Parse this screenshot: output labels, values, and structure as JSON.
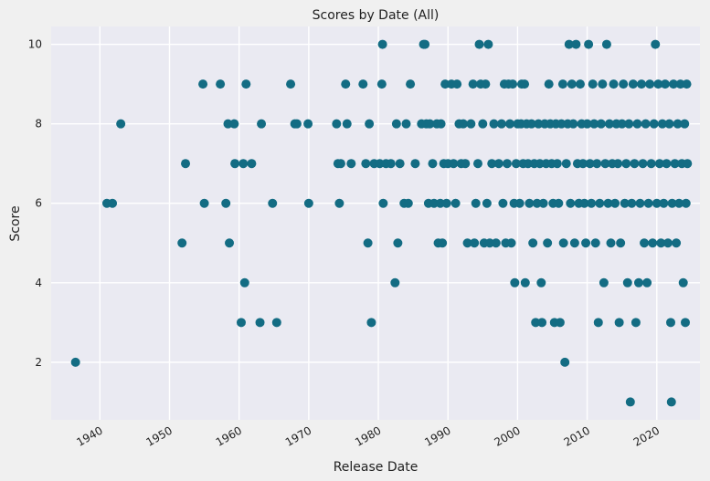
{
  "chart_data": {
    "type": "scatter",
    "title": "Scores by Date (All)",
    "xlabel": "Release Date",
    "ylabel": "Score",
    "xlim": [
      1933.0,
      2026.2
    ],
    "ylim": [
      0.55,
      10.45
    ],
    "xticks": [
      1940,
      1950,
      1960,
      1970,
      1980,
      1990,
      2000,
      2010,
      2020
    ],
    "xtick_labels": [
      "1940",
      "1950",
      "1960",
      "1970",
      "1980",
      "1990",
      "2000",
      "2010",
      "2020"
    ],
    "yticks": [
      2,
      4,
      6,
      8,
      10
    ],
    "ytick_labels": [
      "2",
      "4",
      "6",
      "8",
      "10"
    ],
    "grid": true,
    "colors": {
      "point": "#136c83",
      "plot_bg": "#eaeaf2",
      "fig_bg": "#f0f0f0",
      "grid": "#ffffff"
    },
    "series": [
      {
        "points": [
          [
            1936.5,
            2
          ],
          [
            1941.0,
            6
          ],
          [
            1941.8,
            6
          ],
          [
            1943.0,
            8
          ],
          [
            1951.8,
            5
          ],
          [
            1952.3,
            7
          ],
          [
            1954.8,
            9
          ],
          [
            1955.0,
            6
          ],
          [
            1957.3,
            9
          ],
          [
            1958.1,
            6
          ],
          [
            1958.4,
            8
          ],
          [
            1958.6,
            5
          ],
          [
            1959.3,
            8
          ],
          [
            1959.4,
            7
          ],
          [
            1960.3,
            3
          ],
          [
            1960.6,
            7
          ],
          [
            1960.8,
            4
          ],
          [
            1961.0,
            9
          ],
          [
            1961.8,
            7
          ],
          [
            1963.0,
            3
          ],
          [
            1963.2,
            8
          ],
          [
            1964.8,
            6
          ],
          [
            1965.4,
            3
          ],
          [
            1967.4,
            9
          ],
          [
            1968.0,
            8
          ],
          [
            1968.3,
            8
          ],
          [
            1969.9,
            8
          ],
          [
            1970.0,
            6
          ],
          [
            1974.0,
            8
          ],
          [
            1974.2,
            7
          ],
          [
            1974.4,
            6
          ],
          [
            1974.6,
            7
          ],
          [
            1975.3,
            9
          ],
          [
            1975.5,
            8
          ],
          [
            1976.1,
            7
          ],
          [
            1977.8,
            9
          ],
          [
            1978.2,
            7
          ],
          [
            1978.5,
            5
          ],
          [
            1978.7,
            8
          ],
          [
            1979.0,
            3
          ],
          [
            1979.4,
            7
          ],
          [
            1980.2,
            7
          ],
          [
            1980.5,
            9
          ],
          [
            1980.6,
            10
          ],
          [
            1980.7,
            6
          ],
          [
            1981.1,
            7
          ],
          [
            1981.8,
            7
          ],
          [
            1982.4,
            4
          ],
          [
            1982.6,
            8
          ],
          [
            1982.8,
            5
          ],
          [
            1983.1,
            7
          ],
          [
            1983.7,
            6
          ],
          [
            1984.0,
            8
          ],
          [
            1984.3,
            6
          ],
          [
            1984.6,
            9
          ],
          [
            1985.3,
            7
          ],
          [
            1986.2,
            8
          ],
          [
            1986.5,
            10
          ],
          [
            1986.7,
            10
          ],
          [
            1986.9,
            8
          ],
          [
            1987.2,
            6
          ],
          [
            1987.4,
            8
          ],
          [
            1987.8,
            7
          ],
          [
            1988.0,
            6
          ],
          [
            1988.4,
            8
          ],
          [
            1988.6,
            5
          ],
          [
            1988.9,
            6
          ],
          [
            1989.0,
            8
          ],
          [
            1989.2,
            5
          ],
          [
            1989.4,
            7
          ],
          [
            1989.6,
            9
          ],
          [
            1989.8,
            6
          ],
          [
            1990.0,
            7
          ],
          [
            1990.5,
            9
          ],
          [
            1990.8,
            7
          ],
          [
            1991.1,
            6
          ],
          [
            1991.3,
            9
          ],
          [
            1991.6,
            8
          ],
          [
            1991.9,
            7
          ],
          [
            1992.2,
            8
          ],
          [
            1992.5,
            7
          ],
          [
            1992.8,
            5
          ],
          [
            1993.3,
            8
          ],
          [
            1993.6,
            9
          ],
          [
            1993.8,
            5
          ],
          [
            1994.0,
            6
          ],
          [
            1994.3,
            7
          ],
          [
            1994.5,
            10
          ],
          [
            1994.7,
            9
          ],
          [
            1995.0,
            8
          ],
          [
            1995.2,
            5
          ],
          [
            1995.4,
            9
          ],
          [
            1995.6,
            6
          ],
          [
            1995.8,
            10
          ],
          [
            1996.0,
            5
          ],
          [
            1996.3,
            7
          ],
          [
            1996.6,
            8
          ],
          [
            1996.9,
            5
          ],
          [
            1997.3,
            7
          ],
          [
            1997.7,
            8
          ],
          [
            1997.9,
            6
          ],
          [
            1998.1,
            9
          ],
          [
            1998.3,
            5
          ],
          [
            1998.5,
            7
          ],
          [
            1998.7,
            9
          ],
          [
            1998.9,
            8
          ],
          [
            1999.1,
            5
          ],
          [
            1999.3,
            9
          ],
          [
            1999.5,
            6
          ],
          [
            1999.6,
            4
          ],
          [
            1999.8,
            7
          ],
          [
            2000.0,
            8
          ],
          [
            2000.3,
            6
          ],
          [
            2000.5,
            8
          ],
          [
            2000.6,
            9
          ],
          [
            2000.8,
            7
          ],
          [
            2001.0,
            9
          ],
          [
            2001.1,
            4
          ],
          [
            2001.3,
            8
          ],
          [
            2001.5,
            7
          ],
          [
            2001.7,
            6
          ],
          [
            2002.0,
            8
          ],
          [
            2002.2,
            5
          ],
          [
            2002.4,
            7
          ],
          [
            2002.6,
            3
          ],
          [
            2002.8,
            6
          ],
          [
            2003.0,
            8
          ],
          [
            2003.2,
            7
          ],
          [
            2003.4,
            4
          ],
          [
            2003.5,
            3
          ],
          [
            2003.7,
            6
          ],
          [
            2003.9,
            8
          ],
          [
            2004.1,
            7
          ],
          [
            2004.3,
            5
          ],
          [
            2004.5,
            9
          ],
          [
            2004.7,
            8
          ],
          [
            2004.9,
            7
          ],
          [
            2005.1,
            6
          ],
          [
            2005.3,
            3
          ],
          [
            2005.5,
            8
          ],
          [
            2005.7,
            7
          ],
          [
            2005.9,
            6
          ],
          [
            2006.1,
            3
          ],
          [
            2006.3,
            8
          ],
          [
            2006.5,
            9
          ],
          [
            2006.6,
            5
          ],
          [
            2006.8,
            2
          ],
          [
            2007.0,
            7
          ],
          [
            2007.2,
            8
          ],
          [
            2007.4,
            10
          ],
          [
            2007.6,
            6
          ],
          [
            2007.8,
            9
          ],
          [
            2008.0,
            8
          ],
          [
            2008.2,
            5
          ],
          [
            2008.4,
            10
          ],
          [
            2008.6,
            7
          ],
          [
            2008.8,
            6
          ],
          [
            2009.0,
            9
          ],
          [
            2009.2,
            8
          ],
          [
            2009.4,
            7
          ],
          [
            2009.6,
            6
          ],
          [
            2009.8,
            5
          ],
          [
            2010.0,
            8
          ],
          [
            2010.2,
            10
          ],
          [
            2010.4,
            7
          ],
          [
            2010.6,
            6
          ],
          [
            2010.8,
            9
          ],
          [
            2011.0,
            8
          ],
          [
            2011.2,
            5
          ],
          [
            2011.4,
            7
          ],
          [
            2011.6,
            3
          ],
          [
            2011.8,
            6
          ],
          [
            2012.0,
            8
          ],
          [
            2012.2,
            9
          ],
          [
            2012.4,
            4
          ],
          [
            2012.6,
            7
          ],
          [
            2012.8,
            10
          ],
          [
            2013.0,
            6
          ],
          [
            2013.2,
            8
          ],
          [
            2013.4,
            5
          ],
          [
            2013.6,
            7
          ],
          [
            2013.8,
            9
          ],
          [
            2014.0,
            6
          ],
          [
            2014.2,
            8
          ],
          [
            2014.4,
            7
          ],
          [
            2014.6,
            3
          ],
          [
            2014.8,
            5
          ],
          [
            2015.0,
            8
          ],
          [
            2015.2,
            9
          ],
          [
            2015.4,
            6
          ],
          [
            2015.6,
            7
          ],
          [
            2015.8,
            4
          ],
          [
            2016.0,
            8
          ],
          [
            2016.2,
            1
          ],
          [
            2016.4,
            6
          ],
          [
            2016.6,
            9
          ],
          [
            2016.8,
            7
          ],
          [
            2017.0,
            3
          ],
          [
            2017.2,
            8
          ],
          [
            2017.4,
            4
          ],
          [
            2017.6,
            6
          ],
          [
            2017.8,
            9
          ],
          [
            2018.0,
            7
          ],
          [
            2018.2,
            5
          ],
          [
            2018.4,
            8
          ],
          [
            2018.6,
            4
          ],
          [
            2018.8,
            6
          ],
          [
            2019.0,
            9
          ],
          [
            2019.2,
            7
          ],
          [
            2019.4,
            5
          ],
          [
            2019.6,
            8
          ],
          [
            2019.8,
            10
          ],
          [
            2020.0,
            6
          ],
          [
            2020.2,
            9
          ],
          [
            2020.4,
            7
          ],
          [
            2020.6,
            5
          ],
          [
            2020.8,
            8
          ],
          [
            2021.0,
            6
          ],
          [
            2021.2,
            9
          ],
          [
            2021.4,
            7
          ],
          [
            2021.6,
            5
          ],
          [
            2021.8,
            8
          ],
          [
            2022.0,
            3
          ],
          [
            2022.1,
            1
          ],
          [
            2022.2,
            6
          ],
          [
            2022.4,
            9
          ],
          [
            2022.6,
            7
          ],
          [
            2022.8,
            5
          ],
          [
            2023.0,
            8
          ],
          [
            2023.2,
            6
          ],
          [
            2023.4,
            9
          ],
          [
            2023.6,
            7
          ],
          [
            2023.8,
            4
          ],
          [
            2024.0,
            8
          ],
          [
            2024.1,
            3
          ],
          [
            2024.2,
            6
          ],
          [
            2024.3,
            9
          ],
          [
            2024.4,
            7
          ]
        ]
      }
    ]
  }
}
